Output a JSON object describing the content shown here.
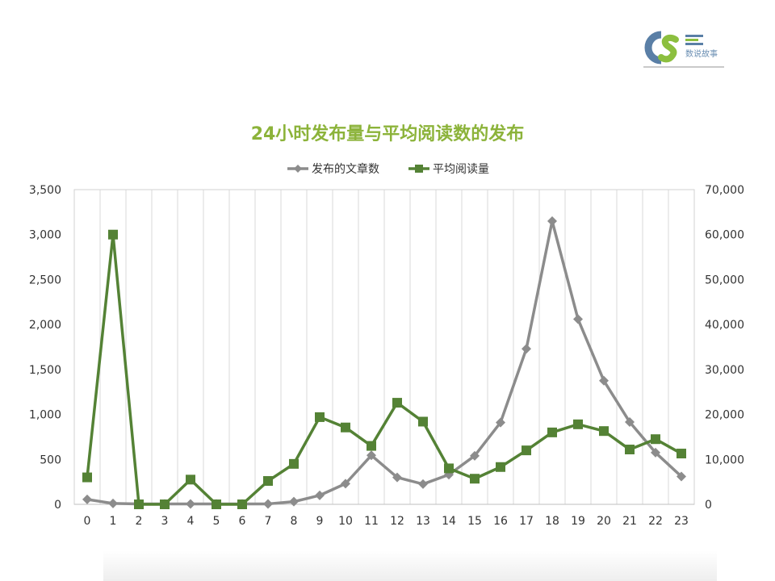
{
  "logo": {
    "text": "数说故事"
  },
  "chart_data": {
    "type": "line",
    "title": "24小时发布量与平均阅读数的发布",
    "categories": [
      "0",
      "1",
      "2",
      "3",
      "4",
      "5",
      "6",
      "7",
      "8",
      "9",
      "10",
      "11",
      "12",
      "13",
      "14",
      "15",
      "16",
      "17",
      "18",
      "19",
      "20",
      "21",
      "22",
      "23"
    ],
    "series": [
      {
        "name": "发布的文章数",
        "axis": "left",
        "color": "#8c8c8c",
        "marker": "diamond",
        "values": [
          55,
          10,
          5,
          5,
          5,
          5,
          5,
          5,
          30,
          100,
          230,
          545,
          300,
          225,
          330,
          540,
          910,
          1730,
          3150,
          2060,
          1375,
          915,
          575,
          310
        ]
      },
      {
        "name": "平均阅读量",
        "axis": "right",
        "color": "#548235",
        "marker": "square",
        "values": [
          6000,
          60000,
          0,
          0,
          5500,
          0,
          0,
          5200,
          9000,
          19400,
          17100,
          13000,
          22600,
          18400,
          8000,
          5700,
          8300,
          12000,
          16000,
          17800,
          16300,
          12200,
          14500,
          11300
        ]
      }
    ],
    "y_left": {
      "min": 0,
      "max": 3500,
      "step": 500,
      "tick_labels": [
        "0",
        "500",
        "1,000",
        "1,500",
        "2,000",
        "2,500",
        "3,000",
        "3,500"
      ]
    },
    "y_right": {
      "min": 0,
      "max": 70000,
      "step": 10000,
      "tick_labels": [
        "0",
        "10,000",
        "20,000",
        "30,000",
        "40,000",
        "50,000",
        "60,000",
        "70,000"
      ]
    },
    "grid": "vertical",
    "legend_position": "top"
  }
}
